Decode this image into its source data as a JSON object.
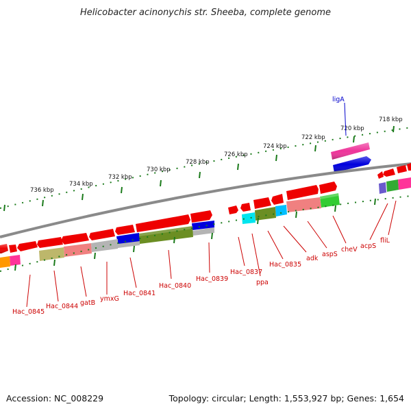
{
  "title": "Helicobacter acinonychis str. Sheeba, complete genome",
  "footer": {
    "accession": "Accession: NC_008229",
    "summary": "Topology: circular; Length: 1,553,927 bp; Genes: 1,654"
  },
  "scale_labels": [
    "718 kbp",
    "720 kbp",
    "722 kbp",
    "724 kbp",
    "726 kbp",
    "728 kbp",
    "730 kbp",
    "732 kbp",
    "734 kbp",
    "736 kbp"
  ],
  "gene_labels": {
    "top": [
      "ligA"
    ],
    "bottom": [
      "fliL",
      "acpS",
      "cheV",
      "aspS",
      "adk",
      "Hac_0835",
      "ppa",
      "Hac_0837",
      "Hac_0839",
      "Hac_0840",
      "Hac_0841",
      "ymxG",
      "gatB",
      "Hac_0844",
      "Hac_0845"
    ]
  },
  "colors": {
    "forward_gene": "#ee0000",
    "ligA": "#ee3399",
    "blue_gene": "#0000dd",
    "backbone": "#888888",
    "ticks": "#1a7a1a",
    "label_red": "#cc0000",
    "label_blue": "#0000cc",
    "olive": "#6b8e23",
    "khaki": "#bdb76b",
    "salmon": "#f08080",
    "silver": "#b4b4b4",
    "cyan": "#00e5ee",
    "deepskyblue": "#00bfff",
    "lime": "#33cc33",
    "orange": "#ff9900",
    "violet": "#6a5acd",
    "pink": "#ff3399"
  }
}
